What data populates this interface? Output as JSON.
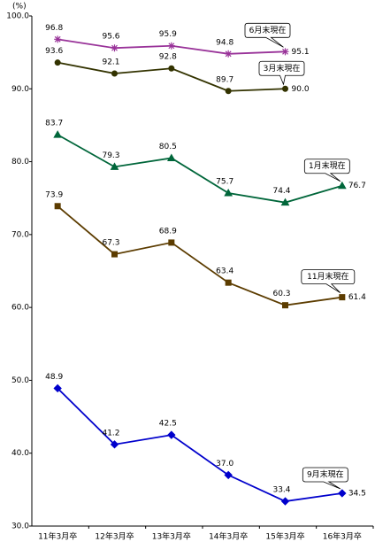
{
  "chart_data": {
    "type": "line",
    "y_label": "(%)",
    "categories": [
      "11年3月卒",
      "12年3月卒",
      "13年3月卒",
      "14年3月卒",
      "15年3月卒",
      "16年3月卒"
    ],
    "ylim": [
      30,
      100
    ],
    "yticks": [
      {
        "value": 30,
        "label": "30.0"
      },
      {
        "value": 40,
        "label": "40.0"
      },
      {
        "value": 50,
        "label": "50.0"
      },
      {
        "value": 60,
        "label": "60.0"
      },
      {
        "value": 70,
        "label": "70.0"
      },
      {
        "value": 80,
        "label": "80.0"
      },
      {
        "value": 90,
        "label": "90.0"
      },
      {
        "value": 100,
        "label": "100.0"
      }
    ],
    "series": [
      {
        "name": "6月末現在",
        "color": "#993399",
        "marker": "star",
        "values": [
          96.8,
          95.6,
          95.9,
          94.8,
          95.1,
          null
        ],
        "value_labels": [
          "96.8",
          "95.6",
          "95.9",
          "94.8",
          "95.1",
          null
        ]
      },
      {
        "name": "3月末現在",
        "color": "#333300",
        "marker": "circle",
        "values": [
          93.6,
          92.1,
          92.8,
          89.7,
          90.0,
          null
        ],
        "value_labels": [
          "93.6",
          "92.1",
          "92.8",
          "89.7",
          "90.0",
          null
        ]
      },
      {
        "name": "1月末現在",
        "color": "#00663a",
        "marker": "triangle",
        "values": [
          83.7,
          79.3,
          80.5,
          75.7,
          74.4,
          76.7
        ],
        "value_labels": [
          "83.7",
          "79.3",
          "80.5",
          "75.7",
          "74.4",
          "76.7"
        ]
      },
      {
        "name": "11月末現在",
        "color": "#5c3c00",
        "marker": "square",
        "values": [
          73.9,
          67.3,
          68.9,
          63.4,
          60.3,
          61.4
        ],
        "value_labels": [
          "73.9",
          "67.3",
          "68.9",
          "63.4",
          "60.3",
          "61.4"
        ]
      },
      {
        "name": "9月末現在",
        "color": "#0000cc",
        "marker": "diamond",
        "values": [
          48.9,
          41.2,
          42.5,
          37.0,
          33.4,
          34.5
        ],
        "value_labels": [
          "48.9",
          "41.2",
          "42.5",
          "37.0",
          "33.4",
          "34.5"
        ]
      }
    ]
  }
}
